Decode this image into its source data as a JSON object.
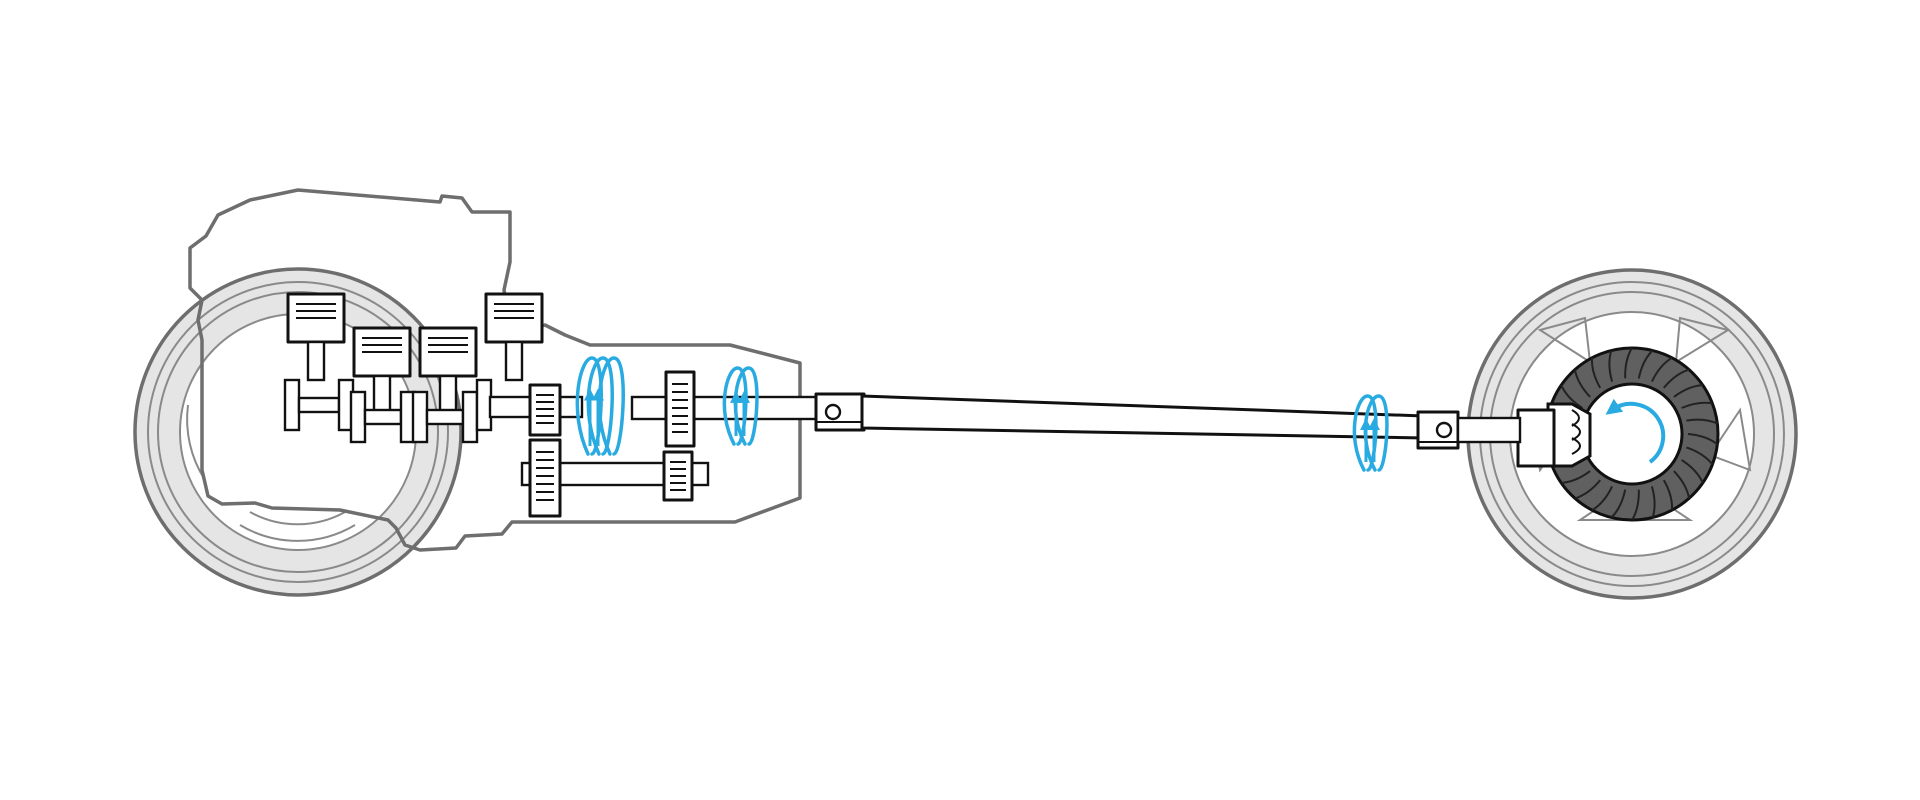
{
  "diagram": {
    "colors": {
      "motion": "#29abe2",
      "outline": "#6e6e6e",
      "tire_fill": "#e5e5e5",
      "ring_gear": "#606060",
      "part_stroke": "#111111"
    },
    "icons": {
      "rotation_spiral": "spiral-arrow",
      "rotation_circular": "circular-arrow"
    }
  }
}
